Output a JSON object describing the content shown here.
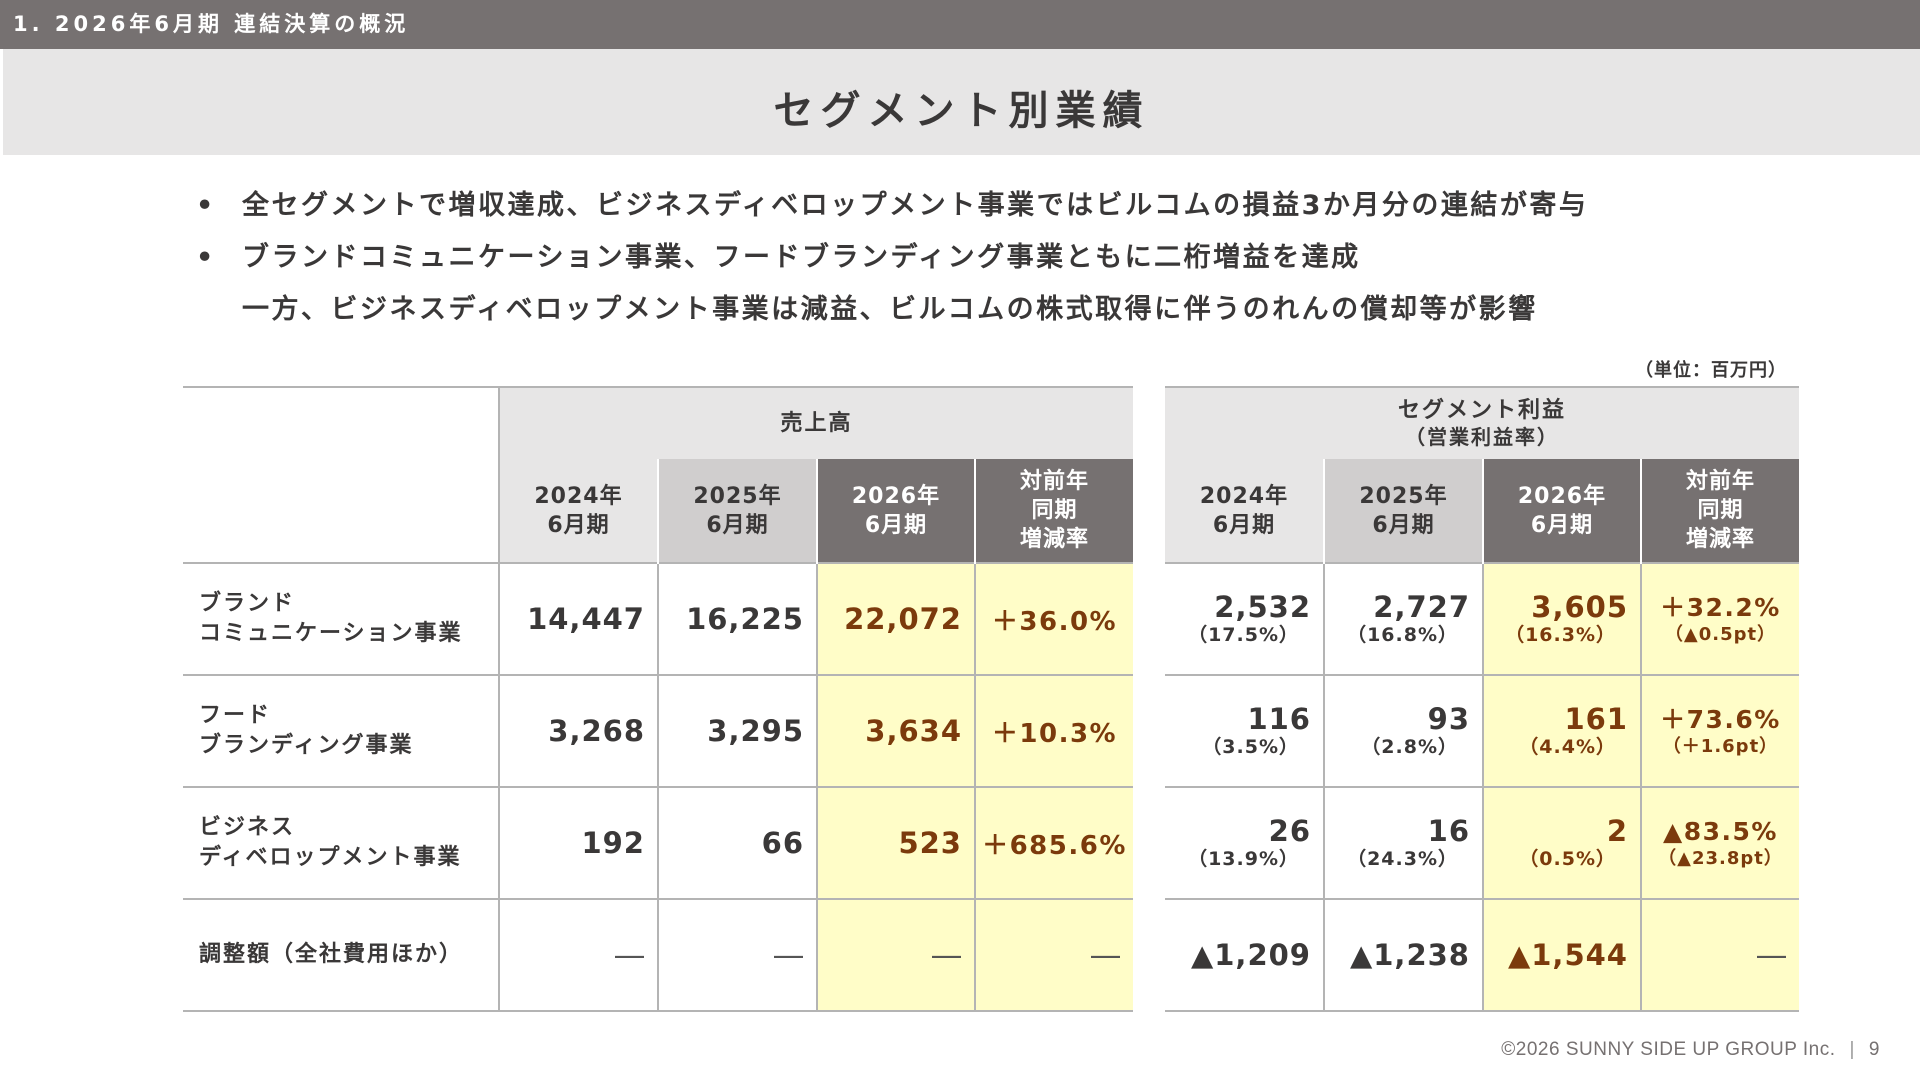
{
  "header": {
    "section": "1. 2026年6月期 連結決算の概況"
  },
  "title": "セグメント別業績",
  "bullets": [
    {
      "marker": "•",
      "text": "全セグメントで増収達成、ビジネスディベロップメント事業ではビルコムの損益3か月分の連結が寄与"
    },
    {
      "marker": "•",
      "text": "ブランドコミュニケーション事業、フードブランディング事業ともに二桁増益を達成"
    },
    {
      "marker": "",
      "text": "一方、ビジネスディベロップメント事業は減益、ビルコムの株式取得に伴うのれんの償却等が影響"
    }
  ],
  "unit": "（単位：百万円）",
  "sales": {
    "group_label": "売上高",
    "cols": [
      {
        "l1": "2024年",
        "l2": "6月期",
        "l3": ""
      },
      {
        "l1": "2025年",
        "l2": "6月期",
        "l3": ""
      },
      {
        "l1": "2026年",
        "l2": "6月期",
        "l3": ""
      },
      {
        "l1": "対前年",
        "l2": "同期",
        "l3": "増減率"
      }
    ]
  },
  "profit": {
    "group_label_1": "セグメント利益",
    "group_label_2": "（営業利益率）",
    "cols": [
      {
        "l1": "2024年",
        "l2": "6月期",
        "l3": ""
      },
      {
        "l1": "2025年",
        "l2": "6月期",
        "l3": ""
      },
      {
        "l1": "2026年",
        "l2": "6月期",
        "l3": ""
      },
      {
        "l1": "対前年",
        "l2": "同期",
        "l3": "増減率"
      }
    ]
  },
  "rows": [
    {
      "label_1": "ブランド",
      "label_2": "コミュニケーション事業",
      "sales": [
        "14,447",
        "16,225",
        "22,072",
        "＋36.0%"
      ],
      "profit": [
        {
          "v": "2,532",
          "s": "（17.5%）"
        },
        {
          "v": "2,727",
          "s": "（16.8%）"
        },
        {
          "v": "3,605",
          "s": "（16.3%）"
        },
        {
          "v": "＋32.2%",
          "s": "（▲0.5pt）"
        }
      ]
    },
    {
      "label_1": "フード",
      "label_2": "ブランディング事業",
      "sales": [
        "3,268",
        "3,295",
        "3,634",
        "＋10.3%"
      ],
      "profit": [
        {
          "v": "116",
          "s": "（3.5%）"
        },
        {
          "v": "93",
          "s": "（2.8%）"
        },
        {
          "v": "161",
          "s": "（4.4%）"
        },
        {
          "v": "＋73.6%",
          "s": "（＋1.6pt）"
        }
      ]
    },
    {
      "label_1": "ビジネス",
      "label_2": "ディベロップメント事業",
      "sales": [
        "192",
        "66",
        "523",
        "＋685.6%"
      ],
      "profit": [
        {
          "v": "26",
          "s": "（13.9%）"
        },
        {
          "v": "16",
          "s": "（24.3%）"
        },
        {
          "v": "2",
          "s": "（0.5%）"
        },
        {
          "v": "▲83.5%",
          "s": "（▲23.8pt）"
        }
      ]
    },
    {
      "label_1": "調整額（全社費用ほか）",
      "label_2": "",
      "sales": [
        "―",
        "―",
        "―",
        "―"
      ],
      "profit": [
        {
          "v": "▲1,209",
          "s": ""
        },
        {
          "v": "▲1,238",
          "s": ""
        },
        {
          "v": "▲1,544",
          "s": ""
        },
        {
          "v": "―",
          "s": ""
        }
      ]
    }
  ],
  "footer": {
    "copyright": "©2026 SUNNY SIDE UP GROUP Inc.",
    "separator": "|",
    "page": "9"
  },
  "colors": {
    "header_bar": "#767171",
    "title_band": "#e7e6e6",
    "highlight": "#fffdc8",
    "accent_text": "#7b3a0c"
  }
}
